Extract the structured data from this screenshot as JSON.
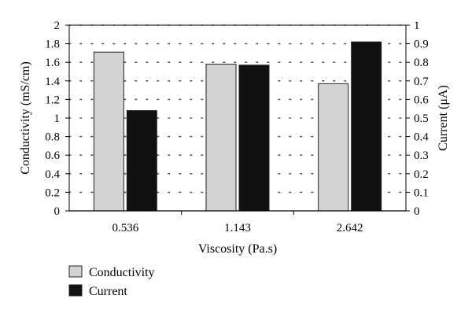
{
  "chart_data": {
    "type": "bar",
    "categories": [
      "0.536",
      "1.143",
      "2.642"
    ],
    "xlabel": "Viscosity (Pa.s)",
    "ylabel_left": "Conductivity (mS/cm)",
    "ylabel_right": "Current (μA)",
    "ylim_left": [
      0,
      2
    ],
    "ylim_right": [
      0,
      1
    ],
    "yticks_left": [
      "0",
      "0.2",
      "0.4",
      "0.6",
      "0.8",
      "1",
      "1.2",
      "1.4",
      "1.6",
      "1.8",
      "2"
    ],
    "yticks_right": [
      "0",
      "0.1",
      "0.2",
      "0.3",
      "0.4",
      "0.5",
      "0.6",
      "0.7",
      "0.8",
      "0.9",
      "1"
    ],
    "grid": "dotted",
    "legend_position": "bottom-left",
    "series": [
      {
        "name": "Conductivity",
        "axis": "left",
        "values": [
          1.71,
          1.58,
          1.37
        ],
        "color": "#d3d3d3"
      },
      {
        "name": "Current",
        "axis": "right",
        "values": [
          0.54,
          0.785,
          0.91
        ],
        "color": "#111111"
      }
    ]
  }
}
